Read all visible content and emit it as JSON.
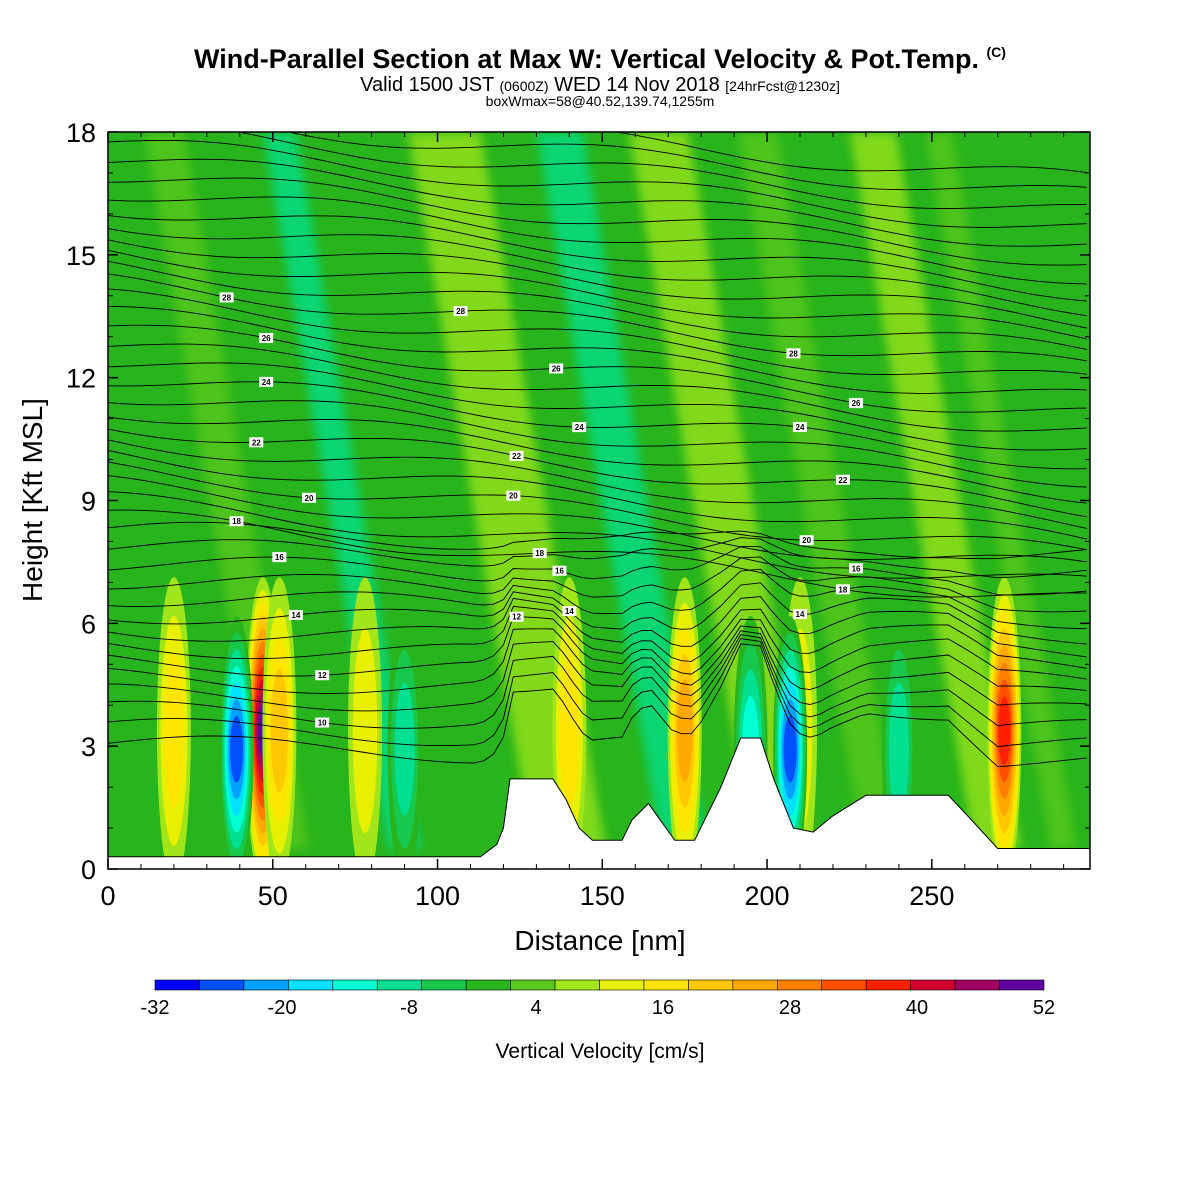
{
  "header": {
    "title_main": "Wind-Parallel Section at Max W: Vertical Velocity & Pot.Temp.",
    "title_mark": "(C)",
    "valid_a": "Valid 1500 JST",
    "valid_b": "(0600Z)",
    "valid_c": "WED 14 Nov 2018",
    "valid_d": "[24hrFcst@1230z]",
    "box": "boxWmax=58@40.52,139.74,1255m"
  },
  "chart_data": {
    "type": "heatmap",
    "xlabel": "Distance [nm]",
    "ylabel": "Height [Kft MSL]",
    "xlim": [
      0,
      298
    ],
    "ylim": [
      0,
      18
    ],
    "xticks": [
      0,
      50,
      100,
      150,
      200,
      250
    ],
    "yticks": [
      0,
      3,
      6,
      9,
      12,
      15,
      18
    ],
    "colorbar": {
      "title": "Vertical Velocity [cm/s]",
      "tick_labels": [
        "-32",
        "-20",
        "-8",
        "4",
        "16",
        "28",
        "40",
        "52"
      ],
      "levels_from": -32,
      "levels_to": 52,
      "level_step": 4,
      "colors": [
        "#0000ff",
        "#0050ff",
        "#00a0ff",
        "#00e0ff",
        "#00ffd2",
        "#00e090",
        "#18c84c",
        "#28b41c",
        "#5ac81e",
        "#a0e61a",
        "#e6f000",
        "#ffe600",
        "#ffc800",
        "#ffa800",
        "#ff8000",
        "#ff5000",
        "#ff2000",
        "#d00030",
        "#a00060",
        "#6000a0"
      ]
    },
    "updraft_columns": [
      {
        "x": 20,
        "peak_w": 14
      },
      {
        "x": 47,
        "peak_w": 44
      },
      {
        "x": 52,
        "peak_w": 16
      },
      {
        "x": 78,
        "peak_w": 10
      },
      {
        "x": 140,
        "peak_w": 14
      },
      {
        "x": 175,
        "peak_w": 22
      },
      {
        "x": 210,
        "peak_w": 10
      },
      {
        "x": 272,
        "peak_w": 32
      }
    ],
    "downdraft_columns": [
      {
        "x": 39,
        "peak_w": -28
      },
      {
        "x": 90,
        "peak_w": -12
      },
      {
        "x": 195,
        "peak_w": -18
      },
      {
        "x": 207,
        "peak_w": -30
      },
      {
        "x": 240,
        "peak_w": -12
      }
    ],
    "terrain_kft": [
      [
        0,
        0.3
      ],
      [
        113,
        0.3
      ],
      [
        118,
        0.6
      ],
      [
        120,
        1.0
      ],
      [
        122,
        2.2
      ],
      [
        135,
        2.2
      ],
      [
        139,
        1.7
      ],
      [
        143,
        1.0
      ],
      [
        147,
        0.7
      ],
      [
        156,
        0.7
      ],
      [
        159,
        1.2
      ],
      [
        164,
        1.6
      ],
      [
        172,
        0.7
      ],
      [
        178,
        0.7
      ],
      [
        186,
        2.0
      ],
      [
        192,
        3.2
      ],
      [
        198,
        3.2
      ],
      [
        202,
        2.2
      ],
      [
        208,
        1.0
      ],
      [
        214,
        0.9
      ],
      [
        220,
        1.3
      ],
      [
        230,
        1.8
      ],
      [
        255,
        1.8
      ],
      [
        262,
        1.2
      ],
      [
        270,
        0.5
      ],
      [
        298,
        0.5
      ]
    ],
    "theta_contours": [
      {
        "level": 10,
        "label_x": 65
      },
      {
        "level": 12,
        "label_x": 65
      },
      {
        "level": 12,
        "label_x": 124
      },
      {
        "level": 14,
        "label_x": 57
      },
      {
        "level": 14,
        "label_x": 140
      },
      {
        "level": 14,
        "label_x": 210
      },
      {
        "level": 16,
        "label_x": 52
      },
      {
        "level": 16,
        "label_x": 137
      },
      {
        "level": 16,
        "label_x": 227
      },
      {
        "level": 18,
        "label_x": 39
      },
      {
        "level": 18,
        "label_x": 131
      },
      {
        "level": 18,
        "label_x": 223
      },
      {
        "level": 20,
        "label_x": 61
      },
      {
        "level": 20,
        "label_x": 123
      },
      {
        "level": 20,
        "label_x": 212
      },
      {
        "level": 22,
        "label_x": 45
      },
      {
        "level": 22,
        "label_x": 124
      },
      {
        "level": 22,
        "label_x": 223
      },
      {
        "level": 24,
        "label_x": 48
      },
      {
        "level": 24,
        "label_x": 143
      },
      {
        "level": 24,
        "label_x": 210
      },
      {
        "level": 26,
        "label_x": 48
      },
      {
        "level": 26,
        "label_x": 136
      },
      {
        "level": 26,
        "label_x": 227
      },
      {
        "level": 28,
        "label_x": 36
      },
      {
        "level": 28,
        "label_x": 107
      },
      {
        "level": 28,
        "label_x": 208
      }
    ]
  }
}
